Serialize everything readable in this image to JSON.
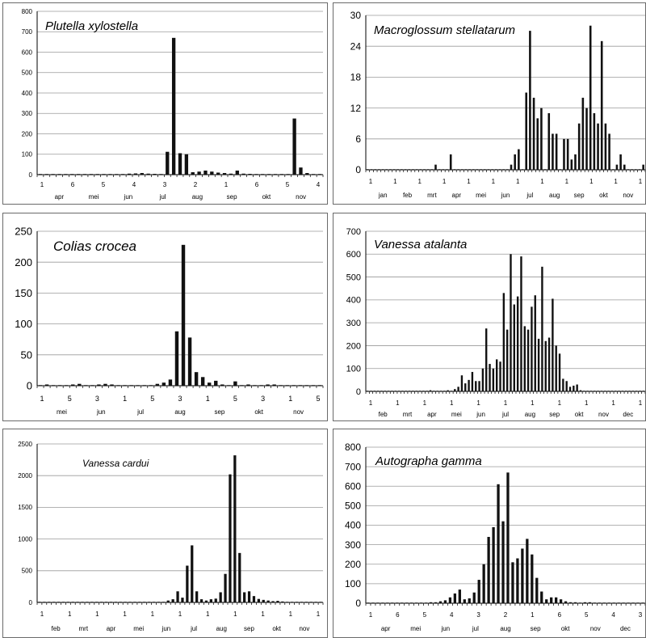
{
  "chart_data": [
    {
      "id": "plutella",
      "type": "bar",
      "title": "Plutella xylostella",
      "ylim": [
        0,
        800
      ],
      "yticks": [
        "0",
        "100",
        "200",
        "300",
        "400",
        "500",
        "600",
        "700",
        "800"
      ],
      "xtick_top": [
        "1",
        "6",
        "5",
        "4",
        "3",
        "2",
        "1",
        "6",
        "5",
        "4"
      ],
      "xtick_month": [
        "apr",
        "mei",
        "jun",
        "jul",
        "aug",
        "sep",
        "okt",
        "nov"
      ],
      "grid": true,
      "values": [
        2,
        2,
        1,
        2,
        2,
        1,
        2,
        2,
        2,
        2,
        2,
        2,
        3,
        3,
        5,
        6,
        8,
        5,
        4,
        3,
        112,
        670,
        105,
        100,
        12,
        15,
        20,
        15,
        10,
        8,
        5,
        20,
        5,
        4,
        3,
        2,
        2,
        2,
        2,
        2,
        275,
        35,
        8,
        2,
        1
      ]
    },
    {
      "id": "macroglossum",
      "type": "bar",
      "title": "Macroglossum stellatarum",
      "ylim": [
        0,
        30
      ],
      "yticks": [
        "0",
        "6",
        "12",
        "18",
        "24",
        "30"
      ],
      "xtick_top": [
        "1",
        "1",
        "1",
        "1",
        "1",
        "1",
        "1",
        "1",
        "1",
        "1",
        "1",
        "1"
      ],
      "xtick_month": [
        "jan",
        "feb",
        "mrt",
        "apr",
        "mei",
        "jun",
        "jul",
        "aug",
        "sep",
        "okt",
        "nov"
      ],
      "grid": true,
      "values": [
        0,
        0,
        0,
        0,
        0,
        0,
        0,
        0,
        0,
        0,
        0,
        0,
        0,
        0,
        0,
        0,
        0,
        0,
        1,
        0,
        0,
        0,
        3,
        0,
        0,
        0,
        0,
        0,
        0,
        0,
        0,
        0,
        0,
        0,
        0,
        0,
        0,
        0,
        1,
        3,
        4,
        0,
        15,
        27,
        14,
        10,
        12,
        0,
        11,
        7,
        7,
        0,
        6,
        6,
        2,
        3,
        9,
        14,
        12,
        28,
        11,
        9,
        25,
        9,
        7,
        0,
        1,
        3,
        1,
        0,
        0,
        0,
        0,
        1
      ]
    },
    {
      "id": "colias",
      "type": "bar",
      "title": "Colias crocea",
      "ylim": [
        0,
        250
      ],
      "yticks": [
        "0",
        "50",
        "100",
        "150",
        "200",
        "250"
      ],
      "xtick_top": [
        "1",
        "5",
        "3",
        "1",
        "5",
        "3",
        "1",
        "5",
        "3",
        "1",
        "5"
      ],
      "xtick_month": [
        "mei",
        "jun",
        "jul",
        "aug",
        "sep",
        "okt",
        "nov"
      ],
      "grid": true,
      "values": [
        1,
        2,
        1,
        1,
        1,
        2,
        3,
        1,
        1,
        2,
        3,
        2,
        1,
        1,
        1,
        1,
        1,
        1,
        3,
        5,
        10,
        88,
        228,
        78,
        22,
        14,
        5,
        8,
        2,
        1,
        7,
        1,
        2,
        1,
        1,
        2,
        2,
        1,
        1,
        1,
        1,
        1,
        1,
        1
      ]
    },
    {
      "id": "vanessa-atalanta",
      "type": "bar",
      "title": "Vanessa atalanta",
      "ylim": [
        0,
        700
      ],
      "yticks": [
        "0",
        "100",
        "200",
        "300",
        "400",
        "500",
        "600",
        "700"
      ],
      "xtick_top": [
        "1",
        "1",
        "1",
        "1",
        "1",
        "1",
        "1",
        "1",
        "1",
        "1",
        "1"
      ],
      "xtick_month": [
        "feb",
        "mrt",
        "apr",
        "mei",
        "jun",
        "jul",
        "aug",
        "sep",
        "okt",
        "nov",
        "dec"
      ],
      "grid": true,
      "values": [
        0,
        0,
        0,
        0,
        0,
        0,
        0,
        0,
        0,
        0,
        0,
        0,
        0,
        0,
        0,
        0,
        0,
        0,
        5,
        0,
        0,
        0,
        0,
        5,
        0,
        10,
        20,
        70,
        35,
        50,
        85,
        45,
        45,
        100,
        275,
        120,
        100,
        140,
        130,
        430,
        270,
        600,
        380,
        415,
        590,
        285,
        270,
        370,
        420,
        230,
        545,
        220,
        235,
        405,
        200,
        165,
        55,
        45,
        20,
        25,
        30,
        5,
        0,
        0,
        0,
        0,
        0,
        0,
        0,
        0,
        0,
        0,
        0,
        0,
        0,
        0,
        0,
        0,
        0,
        0
      ]
    },
    {
      "id": "vanessa-cardui",
      "type": "bar",
      "title": "Vanessa cardui",
      "ylim": [
        0,
        2500
      ],
      "yticks": [
        "0",
        "500",
        "1000",
        "1500",
        "2000",
        "2500"
      ],
      "xtick_top": [
        "1",
        "1",
        "1",
        "1",
        "1",
        "1",
        "1",
        "1",
        "1",
        "1",
        "1"
      ],
      "xtick_month": [
        "feb",
        "mrt",
        "apr",
        "mei",
        "jun",
        "jul",
        "aug",
        "sep",
        "okt",
        "nov"
      ],
      "grid": true,
      "values": [
        0,
        0,
        0,
        0,
        0,
        0,
        0,
        0,
        0,
        0,
        0,
        0,
        0,
        0,
        0,
        0,
        0,
        0,
        0,
        0,
        0,
        0,
        0,
        0,
        5,
        0,
        10,
        30,
        50,
        175,
        75,
        580,
        900,
        175,
        50,
        30,
        50,
        60,
        160,
        450,
        2020,
        2320,
        780,
        160,
        175,
        100,
        55,
        40,
        30,
        20,
        25,
        15,
        10,
        5,
        5,
        0,
        0,
        0,
        0,
        0
      ]
    },
    {
      "id": "autographa",
      "type": "bar",
      "title": "Autographa gamma",
      "ylim": [
        0,
        800
      ],
      "yticks": [
        "0",
        "100",
        "200",
        "300",
        "400",
        "500",
        "600",
        "700",
        "800"
      ],
      "xtick_top": [
        "1",
        "6",
        "5",
        "4",
        "3",
        "2",
        "1",
        "6",
        "5",
        "4",
        "3"
      ],
      "xtick_month": [
        "apr",
        "mei",
        "jun",
        "jul",
        "aug",
        "sep",
        "okt",
        "nov",
        "dec"
      ],
      "grid": true,
      "values": [
        0,
        0,
        0,
        0,
        0,
        0,
        0,
        0,
        0,
        0,
        0,
        0,
        0,
        5,
        5,
        10,
        15,
        30,
        50,
        70,
        20,
        25,
        55,
        120,
        200,
        340,
        390,
        610,
        420,
        670,
        210,
        230,
        280,
        330,
        250,
        130,
        60,
        20,
        30,
        30,
        20,
        10,
        5,
        5,
        0,
        5,
        5,
        0,
        0,
        0,
        0,
        0,
        0,
        0,
        0,
        0,
        0,
        0
      ]
    }
  ]
}
